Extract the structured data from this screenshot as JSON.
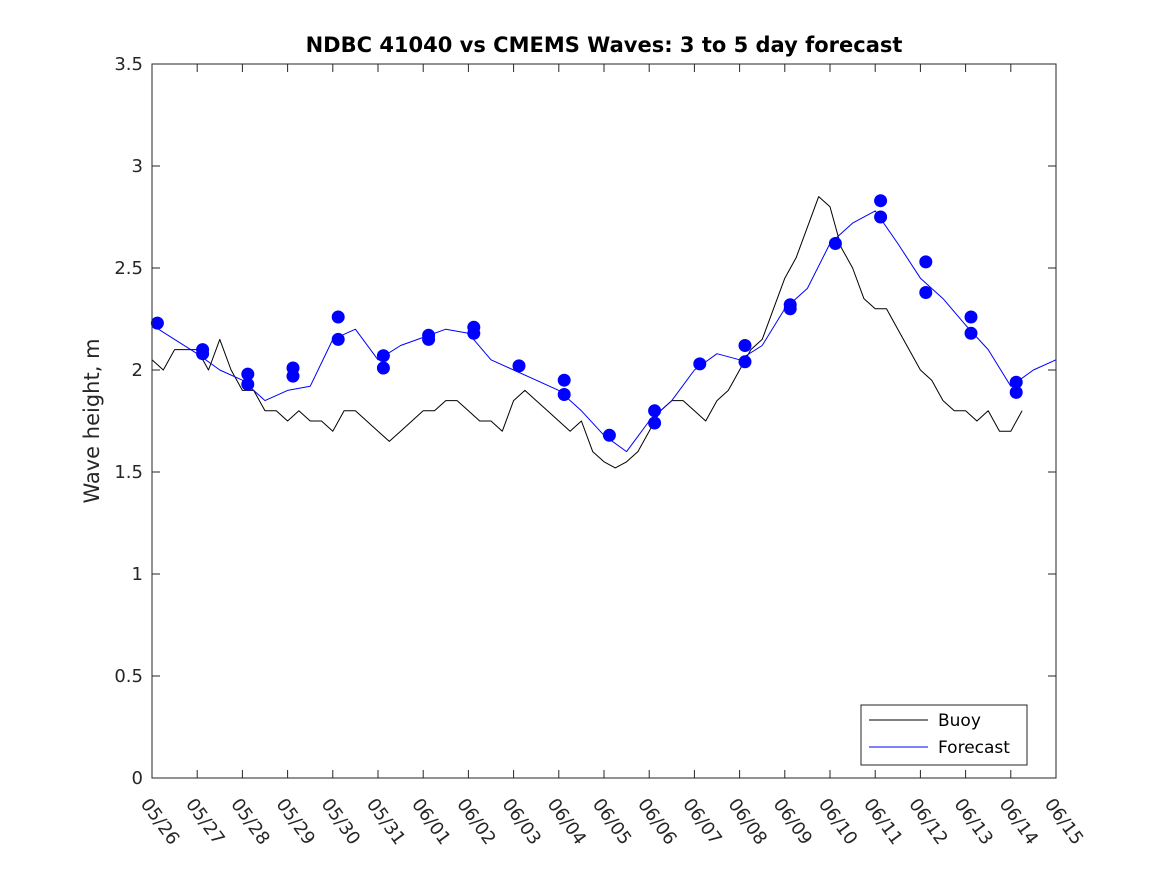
{
  "chart_data": {
    "type": "line",
    "title": "NDBC 41040 vs CMEMS Waves: 3 to 5 day forecast",
    "xlabel": "",
    "ylabel": "Wave height, m",
    "xlim": [
      "05/26",
      "06/15"
    ],
    "ylim": [
      0,
      3.5
    ],
    "y_ticks": [
      "0",
      "0.5",
      "1",
      "1.5",
      "2",
      "2.5",
      "3",
      "3.5"
    ],
    "x_ticks": [
      "05/26",
      "05/27",
      "05/28",
      "05/29",
      "05/30",
      "05/31",
      "06/01",
      "06/02",
      "06/03",
      "06/04",
      "06/05",
      "06/06",
      "06/07",
      "06/08",
      "06/09",
      "06/10",
      "06/11",
      "06/12",
      "06/13",
      "06/14",
      "06/15"
    ],
    "grid": false,
    "legend_position": "bottom-right",
    "colors": {
      "buoy": "#000000",
      "forecast": "#0000ff"
    },
    "series": [
      {
        "name": "Buoy",
        "x": [
          0.0,
          0.25,
          0.5,
          0.75,
          1.0,
          1.25,
          1.5,
          1.75,
          2.0,
          2.25,
          2.5,
          2.75,
          3.0,
          3.25,
          3.5,
          3.75,
          4.0,
          4.25,
          4.5,
          4.75,
          5.0,
          5.25,
          5.5,
          5.75,
          6.0,
          6.25,
          6.5,
          6.75,
          7.0,
          7.25,
          7.5,
          7.75,
          8.0,
          8.25,
          8.5,
          8.75,
          9.0,
          9.25,
          9.5,
          9.75,
          10.0,
          10.25,
          10.5,
          10.75,
          11.0,
          11.25,
          11.5,
          11.75,
          12.0,
          12.25,
          12.5,
          12.75,
          13.0,
          13.25,
          13.5,
          13.75,
          14.0,
          14.25,
          14.5,
          14.75,
          15.0,
          15.25,
          15.5,
          15.75,
          16.0,
          16.25,
          16.5,
          16.75,
          17.0,
          17.25,
          17.5,
          17.75,
          18.0,
          18.25,
          18.5,
          18.75,
          19.0,
          19.25
        ],
        "y": [
          2.05,
          2.0,
          2.1,
          2.1,
          2.1,
          2.0,
          2.15,
          2.0,
          1.9,
          1.9,
          1.8,
          1.8,
          1.75,
          1.8,
          1.75,
          1.75,
          1.7,
          1.8,
          1.8,
          1.75,
          1.7,
          1.65,
          1.7,
          1.75,
          1.8,
          1.8,
          1.85,
          1.85,
          1.8,
          1.75,
          1.75,
          1.7,
          1.85,
          1.9,
          1.85,
          1.8,
          1.75,
          1.7,
          1.75,
          1.6,
          1.55,
          1.52,
          1.55,
          1.6,
          1.7,
          1.8,
          1.85,
          1.85,
          1.8,
          1.75,
          1.85,
          1.9,
          2.0,
          2.1,
          2.15,
          2.3,
          2.45,
          2.55,
          2.7,
          2.85,
          2.8,
          2.6,
          2.5,
          2.35,
          2.3,
          2.3,
          2.2,
          2.1,
          2.0,
          1.95,
          1.85,
          1.8,
          1.8,
          1.75,
          1.8,
          1.7,
          1.7,
          1.8
        ]
      },
      {
        "name": "Forecast",
        "x": [
          0.0,
          0.5,
          1.0,
          1.5,
          2.0,
          2.5,
          3.0,
          3.5,
          4.0,
          4.5,
          5.0,
          5.5,
          6.0,
          6.5,
          7.0,
          7.5,
          8.0,
          8.5,
          9.0,
          9.5,
          10.0,
          10.5,
          11.0,
          11.5,
          12.0,
          12.5,
          13.0,
          13.5,
          14.0,
          14.5,
          15.0,
          15.5,
          16.0,
          16.5,
          17.0,
          17.5,
          18.0,
          18.5,
          19.0,
          19.5,
          20.0
        ],
        "y": [
          2.22,
          2.15,
          2.08,
          2.0,
          1.95,
          1.85,
          1.9,
          1.92,
          2.15,
          2.2,
          2.05,
          2.12,
          2.16,
          2.2,
          2.18,
          2.05,
          2.0,
          1.95,
          1.9,
          1.8,
          1.68,
          1.6,
          1.75,
          1.85,
          2.0,
          2.08,
          2.05,
          2.12,
          2.3,
          2.4,
          2.62,
          2.72,
          2.78,
          2.62,
          2.45,
          2.35,
          2.22,
          2.1,
          1.92,
          2.0,
          2.05
        ]
      }
    ],
    "forecast_markers": {
      "x": [
        0.12,
        1.12,
        1.12,
        2.12,
        2.12,
        3.12,
        3.12,
        4.12,
        4.12,
        5.12,
        5.12,
        6.12,
        6.12,
        7.12,
        7.12,
        8.12,
        9.12,
        9.12,
        10.12,
        11.12,
        11.12,
        12.12,
        13.12,
        13.12,
        14.12,
        14.12,
        15.12,
        16.12,
        16.12,
        17.12,
        17.12,
        18.12,
        18.12,
        19.12,
        19.12
      ],
      "y": [
        2.23,
        2.1,
        2.08,
        1.98,
        1.93,
        2.01,
        1.97,
        2.26,
        2.15,
        2.07,
        2.01,
        2.17,
        2.15,
        2.21,
        2.18,
        2.02,
        1.95,
        1.88,
        1.68,
        1.8,
        1.74,
        2.03,
        2.12,
        2.04,
        2.32,
        2.3,
        2.62,
        2.83,
        2.75,
        2.53,
        2.38,
        2.26,
        2.18,
        1.94,
        1.89
      ]
    }
  }
}
